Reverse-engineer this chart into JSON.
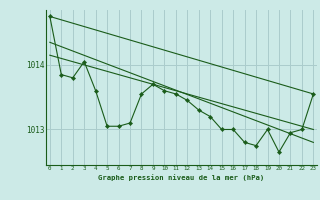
{
  "background_color": "#cceae7",
  "grid_color": "#aacccc",
  "line_color": "#1a5c1a",
  "xlabel": "Graphe pression niveau de la mer (hPa)",
  "yticks": [
    1013,
    1014
  ],
  "xticks": [
    0,
    1,
    2,
    3,
    4,
    5,
    6,
    7,
    8,
    9,
    10,
    11,
    12,
    13,
    14,
    15,
    16,
    17,
    18,
    19,
    20,
    21,
    22,
    23
  ],
  "xlim": [
    -0.3,
    23.3
  ],
  "ylim": [
    1012.45,
    1014.85
  ],
  "line1_x": [
    0,
    1,
    2,
    3,
    4,
    5,
    6,
    7,
    8,
    9,
    10,
    11,
    12,
    13,
    14,
    15,
    16,
    17,
    18,
    19,
    20,
    21,
    22,
    23
  ],
  "line1_y": [
    1014.75,
    1013.85,
    1013.8,
    1014.05,
    1013.6,
    1013.05,
    1013.05,
    1013.1,
    1013.55,
    1013.7,
    1013.6,
    1013.55,
    1013.45,
    1013.3,
    1013.2,
    1013.0,
    1013.0,
    1012.8,
    1012.75,
    1013.0,
    1012.65,
    1012.95,
    1013.0,
    1013.55
  ],
  "line2_x": [
    0,
    23
  ],
  "line2_y": [
    1014.75,
    1013.55
  ],
  "line3_x": [
    0,
    23
  ],
  "line3_y": [
    1014.35,
    1012.8
  ],
  "line4_x": [
    0,
    23
  ],
  "line4_y": [
    1014.15,
    1013.0
  ]
}
